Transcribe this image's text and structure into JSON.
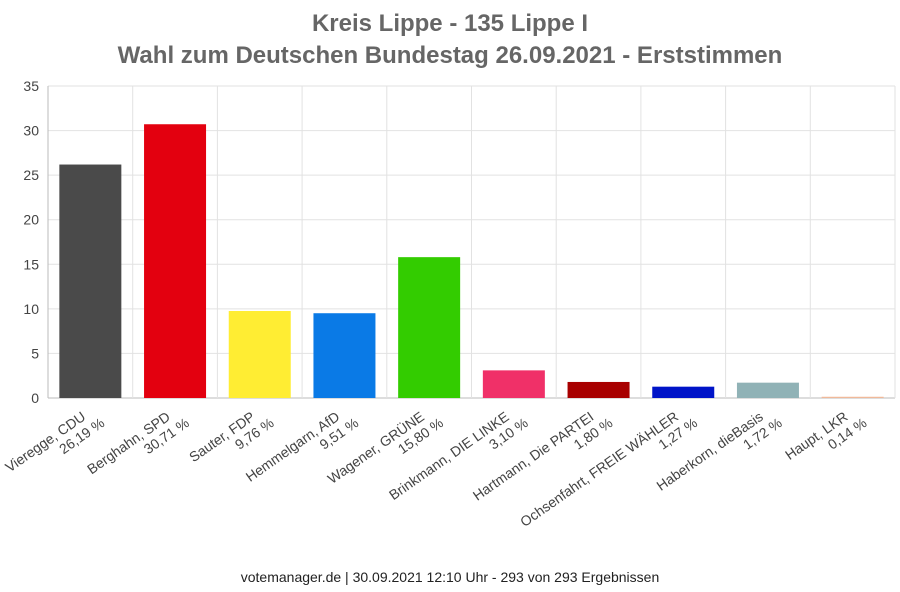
{
  "title_line1": "Kreis Lippe - 135 Lippe I",
  "title_line2": "Wahl zum Deutschen Bundestag 26.09.2021  - Erststimmen",
  "footer": "votemanager.de | 30.09.2021 12:10 Uhr - 293 von 293 Ergebnissen",
  "chart_data": {
    "type": "bar",
    "title": "Kreis Lippe - 135 Lippe I / Wahl zum Deutschen Bundestag 26.09.2021 - Erststimmen",
    "xlabel": "",
    "ylabel": "",
    "ylim": [
      0,
      35
    ],
    "yticks": [
      0,
      5,
      10,
      15,
      20,
      25,
      30,
      35
    ],
    "grid": true,
    "categories": [
      {
        "name": "Vieregge, CDU",
        "pct_label": "26,19 %"
      },
      {
        "name": "Berghahn, SPD",
        "pct_label": "30,71 %"
      },
      {
        "name": "Sauter, FDP",
        "pct_label": "9,76 %"
      },
      {
        "name": "Hemmelgarn, AfD",
        "pct_label": "9,51 %"
      },
      {
        "name": "Wagener, GRÜNE",
        "pct_label": "15,80 %"
      },
      {
        "name": "Brinkmann, DIE LINKE",
        "pct_label": "3,10 %"
      },
      {
        "name": "Hartmann, Die PARTEI",
        "pct_label": "1,80 %"
      },
      {
        "name": "Ochsenfahrt, FREIE WÄHLER",
        "pct_label": "1,27 %"
      },
      {
        "name": "Haberkorn, dieBasis",
        "pct_label": "1,72 %"
      },
      {
        "name": "Haupt, LKR",
        "pct_label": "0,14 %"
      }
    ],
    "values": [
      26.19,
      30.71,
      9.76,
      9.51,
      15.8,
      3.1,
      1.8,
      1.27,
      1.72,
      0.14
    ],
    "colors": [
      "#4a4a4a",
      "#e3000f",
      "#ffed33",
      "#0a7ae6",
      "#33cc00",
      "#f03068",
      "#a80000",
      "#0014c8",
      "#90b2b6",
      "#f0b99a"
    ]
  }
}
